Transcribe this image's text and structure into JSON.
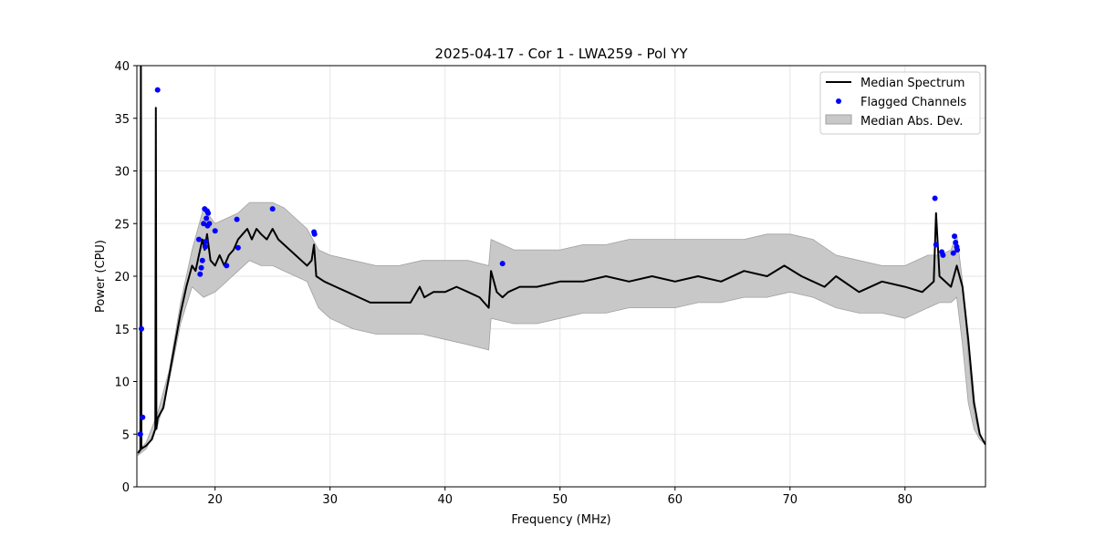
{
  "chart_data": {
    "type": "line",
    "title": "2025-04-17 - Cor 1 - LWA259 - Pol YY",
    "xlabel": "Frequency (MHz)",
    "ylabel": "Power (CPU)",
    "xlim": [
      13.2,
      87.0
    ],
    "ylim": [
      0,
      40
    ],
    "xticks": [
      20,
      30,
      40,
      50,
      60,
      70,
      80
    ],
    "yticks": [
      0,
      5,
      10,
      15,
      20,
      25,
      30,
      35,
      40
    ],
    "grid": true,
    "legend_position": "top-right",
    "legend": [
      "Median Spectrum",
      "Flagged Channels",
      "Median Abs. Dev."
    ],
    "colors": {
      "median": "#000000",
      "flagged": "#0000ff",
      "band_fill": "#c8c8c8",
      "band_edge": "#a0a0a0",
      "grid": "#e6e6e6"
    },
    "series": [
      {
        "name": "Median Spectrum",
        "x": [
          13.3,
          13.5,
          13.55,
          13.6,
          13.7,
          14.0,
          14.5,
          14.8,
          14.85,
          14.9,
          15.0,
          15.5,
          16.0,
          16.5,
          17.0,
          17.5,
          18.0,
          18.3,
          18.6,
          18.9,
          19.1,
          19.3,
          19.6,
          20.0,
          20.4,
          20.8,
          21.2,
          21.6,
          22.0,
          22.4,
          22.8,
          23.2,
          23.6,
          24.0,
          24.5,
          25.0,
          25.5,
          26.0,
          26.5,
          27.0,
          27.5,
          28.0,
          28.4,
          28.6,
          28.8,
          29.5,
          30.5,
          31.5,
          32.5,
          33.5,
          35.0,
          37.0,
          37.8,
          38.2,
          39.0,
          40.0,
          41.0,
          42.0,
          43.0,
          43.8,
          44.0,
          44.5,
          45.0,
          45.5,
          46.5,
          48.0,
          50.0,
          52.0,
          54.0,
          56.0,
          58.0,
          60.0,
          62.0,
          64.0,
          66.0,
          68.0,
          69.5,
          71.0,
          73.0,
          74.0,
          76.0,
          78.0,
          80.0,
          81.5,
          82.5,
          82.7,
          83.0,
          84.0,
          84.5,
          85.0,
          85.5,
          86.0,
          86.5,
          87.0
        ],
        "y": [
          3.2,
          3.5,
          42,
          3.6,
          3.7,
          3.9,
          4.5,
          5.5,
          36,
          5.5,
          6.5,
          7.5,
          10.5,
          13.5,
          16.5,
          19.0,
          21.0,
          20.5,
          22.0,
          23.5,
          22.5,
          24.0,
          21.5,
          21.0,
          22.0,
          21.0,
          22.0,
          22.5,
          23.5,
          24.0,
          24.5,
          23.5,
          24.5,
          24.0,
          23.5,
          24.5,
          23.5,
          23.0,
          22.5,
          22.0,
          21.5,
          21.0,
          21.5,
          23.0,
          20.0,
          19.5,
          19.0,
          18.5,
          18.0,
          17.5,
          17.5,
          17.5,
          19.0,
          18.0,
          18.5,
          18.5,
          19.0,
          18.5,
          18.0,
          17.0,
          20.5,
          18.5,
          18.0,
          18.5,
          19.0,
          19.0,
          19.5,
          19.5,
          20.0,
          19.5,
          20.0,
          19.5,
          20.0,
          19.5,
          20.5,
          20.0,
          21.0,
          20.0,
          19.0,
          20.0,
          18.5,
          19.5,
          19.0,
          18.5,
          19.5,
          26.0,
          20.0,
          19.0,
          21.0,
          19.0,
          14.0,
          8.0,
          5.0,
          4.0
        ]
      },
      {
        "name": "Median Abs. Dev.",
        "x": [
          13.3,
          14.0,
          15.0,
          16.0,
          17.0,
          18.0,
          19.0,
          20.0,
          21.0,
          22.0,
          23.0,
          24.0,
          25.0,
          26.0,
          27.0,
          28.0,
          29.0,
          30.0,
          32.0,
          34.0,
          36.0,
          38.0,
          40.0,
          42.0,
          43.8,
          44.0,
          46.0,
          48.0,
          50.0,
          52.0,
          54.0,
          56.0,
          58.0,
          60.0,
          62.0,
          64.0,
          66.0,
          68.0,
          70.0,
          72.0,
          74.0,
          76.0,
          78.0,
          80.0,
          82.0,
          83.0,
          84.0,
          84.5,
          85.0,
          85.5,
          86.0,
          86.5,
          87.0
        ],
        "lower": [
          3.0,
          3.6,
          5.8,
          10.0,
          15.5,
          19.0,
          18.0,
          18.5,
          19.5,
          20.5,
          21.5,
          21.0,
          21.0,
          20.5,
          20.0,
          19.5,
          17.0,
          16.0,
          15.0,
          14.5,
          14.5,
          14.5,
          14.0,
          13.5,
          13.0,
          16.0,
          15.5,
          15.5,
          16.0,
          16.5,
          16.5,
          17.0,
          17.0,
          17.0,
          17.5,
          17.5,
          18.0,
          18.0,
          18.5,
          18.0,
          17.0,
          16.5,
          16.5,
          16.0,
          17.0,
          17.5,
          17.5,
          18.0,
          13.5,
          8.0,
          5.5,
          4.5,
          4.0
        ],
        "upper": [
          3.4,
          4.2,
          7.0,
          11.0,
          17.5,
          22.5,
          26.5,
          25.0,
          25.5,
          26.0,
          27.0,
          27.0,
          27.0,
          26.5,
          25.5,
          24.5,
          22.5,
          22.0,
          21.5,
          21.0,
          21.0,
          21.5,
          21.5,
          21.5,
          21.0,
          23.5,
          22.5,
          22.5,
          22.5,
          23.0,
          23.0,
          23.5,
          23.5,
          23.5,
          23.5,
          23.5,
          23.5,
          24.0,
          24.0,
          23.5,
          22.0,
          21.5,
          21.0,
          21.0,
          22.0,
          22.0,
          22.5,
          24.0,
          19.5,
          12.5,
          7.0,
          5.0,
          4.0
        ]
      },
      {
        "name": "Flagged Channels",
        "x": [
          13.5,
          13.6,
          13.7,
          15.0,
          18.6,
          18.7,
          18.8,
          18.9,
          19.0,
          19.1,
          19.15,
          19.2,
          19.25,
          19.3,
          19.35,
          19.4,
          19.5,
          20.0,
          21.0,
          21.9,
          22.0,
          25.0,
          28.6,
          28.65,
          45.0,
          82.6,
          82.7,
          83.2,
          83.3,
          84.2,
          84.3,
          84.4,
          84.5,
          84.55
        ],
        "y": [
          5.0,
          15.0,
          6.6,
          37.7,
          23.5,
          20.2,
          20.8,
          21.5,
          25.0,
          26.4,
          22.8,
          23.3,
          25.5,
          26.2,
          24.8,
          26.0,
          25.0,
          24.3,
          21.0,
          25.4,
          22.7,
          26.4,
          24.2,
          24.0,
          21.2,
          27.4,
          23.0,
          22.3,
          22.0,
          22.2,
          23.8,
          23.2,
          22.8,
          22.5
        ]
      }
    ]
  }
}
